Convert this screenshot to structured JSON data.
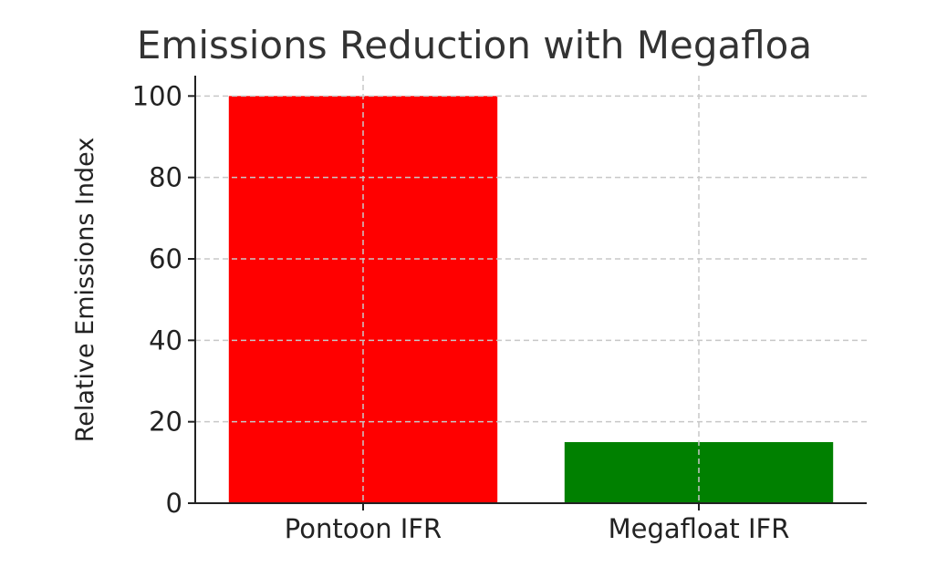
{
  "chart_data": {
    "type": "bar",
    "title": "Emissions Reduction with Megafloa",
    "xlabel": "",
    "ylabel": "Relative Emissions Index",
    "categories": [
      "Pontoon IFR",
      "Megafloat IFR"
    ],
    "values": [
      100,
      15
    ],
    "colors": [
      "#ff0000",
      "#008000"
    ],
    "ylim": [
      0,
      105
    ],
    "yticks": [
      0,
      20,
      40,
      60,
      80,
      100
    ],
    "grid": true
  }
}
